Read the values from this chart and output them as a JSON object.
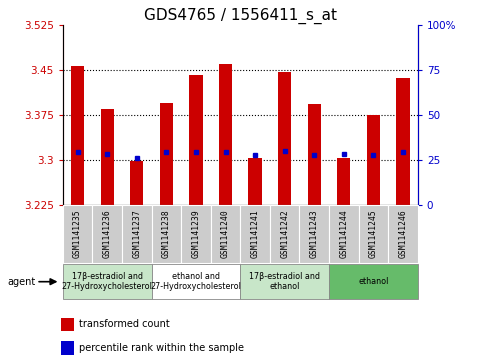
{
  "title": "GDS4765 / 1556411_s_at",
  "samples": [
    "GSM1141235",
    "GSM1141236",
    "GSM1141237",
    "GSM1141238",
    "GSM1141239",
    "GSM1141240",
    "GSM1141241",
    "GSM1141242",
    "GSM1141243",
    "GSM1141244",
    "GSM1141245",
    "GSM1141246"
  ],
  "red_values": [
    3.457,
    3.385,
    3.298,
    3.395,
    3.443,
    3.46,
    3.303,
    3.447,
    3.393,
    3.303,
    3.376,
    3.437
  ],
  "blue_values": [
    3.313,
    3.31,
    3.303,
    3.313,
    3.313,
    3.313,
    3.308,
    3.315,
    3.308,
    3.31,
    3.308,
    3.313
  ],
  "ymin": 3.225,
  "ymax": 3.525,
  "yticks": [
    3.225,
    3.3,
    3.375,
    3.45,
    3.525
  ],
  "ytick_labels": [
    "3.225",
    "3.3",
    "3.375",
    "3.45",
    "3.525"
  ],
  "right_yticks_pct": [
    0,
    25,
    50,
    75,
    100
  ],
  "right_ytick_labels": [
    "0",
    "25",
    "50",
    "75",
    "100%"
  ],
  "hlines": [
    3.3,
    3.375,
    3.45
  ],
  "bar_bottom": 3.225,
  "groups": [
    {
      "label": "17β-estradiol and\n27-Hydroxycholesterol",
      "start": 0,
      "end": 3,
      "color": "#c8e6c9"
    },
    {
      "label": "ethanol and\n27-Hydroxycholesterol",
      "start": 3,
      "end": 6,
      "color": "#ffffff"
    },
    {
      "label": "17β-estradiol and\nethanol",
      "start": 6,
      "end": 9,
      "color": "#c8e6c9"
    },
    {
      "label": "ethanol",
      "start": 9,
      "end": 12,
      "color": "#66bb6a"
    }
  ],
  "agent_label": "agent",
  "legend_red": "transformed count",
  "legend_blue": "percentile rank within the sample",
  "title_fontsize": 11,
  "axis_label_color_red": "#cc0000",
  "axis_label_color_blue": "#0000cc",
  "bar_color": "#cc0000",
  "dot_color": "#0000cc",
  "sample_bg_color": "#cccccc"
}
